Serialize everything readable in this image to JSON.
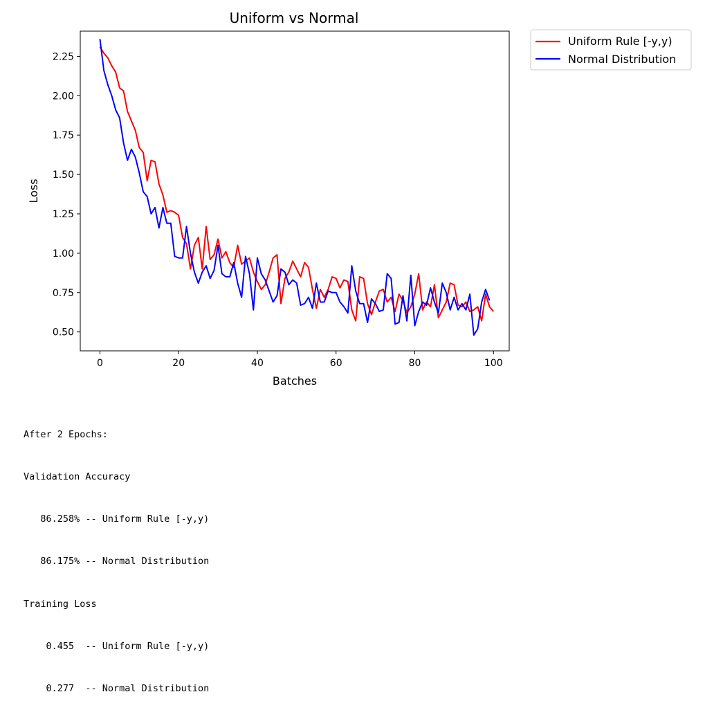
{
  "chart_data": {
    "type": "line",
    "title": "Uniform vs Normal",
    "xlabel": "Batches",
    "ylabel": "Loss",
    "xlim": [
      -5,
      104
    ],
    "ylim": [
      0.38,
      2.41
    ],
    "xticks": [
      0,
      20,
      40,
      60,
      80,
      100
    ],
    "yticks": [
      0.5,
      0.75,
      1.0,
      1.25,
      1.5,
      1.75,
      2.0,
      2.25
    ],
    "ytick_labels": [
      "0.50",
      "0.75",
      "1.00",
      "1.25",
      "1.50",
      "1.75",
      "2.00",
      "2.25"
    ],
    "grid": false,
    "legend_location": "outside-upper-right",
    "series": [
      {
        "name": "Uniform Rule [-y,y)",
        "color": "#ff0000",
        "values": [
          2.31,
          2.27,
          2.24,
          2.19,
          2.15,
          2.05,
          2.03,
          1.9,
          1.84,
          1.78,
          1.67,
          1.64,
          1.46,
          1.59,
          1.58,
          1.44,
          1.37,
          1.26,
          1.27,
          1.26,
          1.24,
          1.1,
          1.06,
          0.9,
          1.05,
          1.1,
          0.9,
          1.17,
          0.96,
          0.99,
          1.09,
          0.97,
          1.01,
          0.94,
          0.91,
          1.05,
          0.93,
          0.95,
          0.97,
          0.88,
          0.82,
          0.77,
          0.8,
          0.88,
          0.97,
          0.99,
          0.68,
          0.84,
          0.88,
          0.95,
          0.9,
          0.85,
          0.94,
          0.91,
          0.77,
          0.65,
          0.77,
          0.72,
          0.77,
          0.85,
          0.84,
          0.78,
          0.83,
          0.82,
          0.64,
          0.57,
          0.85,
          0.84,
          0.68,
          0.61,
          0.69,
          0.76,
          0.77,
          0.69,
          0.72,
          0.63,
          0.74,
          0.7,
          0.62,
          0.66,
          0.74,
          0.87,
          0.64,
          0.69,
          0.66,
          0.8,
          0.59,
          0.64,
          0.69,
          0.81,
          0.8,
          0.67,
          0.66,
          0.69,
          0.63,
          0.64,
          0.66,
          0.57,
          0.74,
          0.66,
          0.63
        ]
      },
      {
        "name": "Normal Distribution",
        "color": "#0000ff",
        "values": [
          2.36,
          2.16,
          2.07,
          2.0,
          1.91,
          1.86,
          1.7,
          1.59,
          1.66,
          1.61,
          1.51,
          1.39,
          1.36,
          1.25,
          1.29,
          1.16,
          1.29,
          1.19,
          1.19,
          0.98,
          0.97,
          0.97,
          1.17,
          1.0,
          0.88,
          0.81,
          0.88,
          0.92,
          0.84,
          0.89,
          1.05,
          0.87,
          0.85,
          0.85,
          0.94,
          0.81,
          0.72,
          0.98,
          0.87,
          0.64,
          0.97,
          0.87,
          0.83,
          0.76,
          0.69,
          0.73,
          0.9,
          0.88,
          0.8,
          0.83,
          0.81,
          0.67,
          0.68,
          0.72,
          0.65,
          0.81,
          0.69,
          0.69,
          0.76,
          0.75,
          0.75,
          0.69,
          0.66,
          0.62,
          0.92,
          0.76,
          0.68,
          0.68,
          0.56,
          0.71,
          0.68,
          0.63,
          0.64,
          0.87,
          0.84,
          0.55,
          0.56,
          0.73,
          0.57,
          0.86,
          0.54,
          0.63,
          0.69,
          0.67,
          0.78,
          0.69,
          0.62,
          0.81,
          0.75,
          0.64,
          0.72,
          0.64,
          0.68,
          0.64,
          0.74,
          0.48,
          0.52,
          0.69,
          0.77,
          0.7
        ]
      }
    ]
  },
  "output": {
    "lines": [
      "After 2 Epochs:",
      "Validation Accuracy",
      "   86.258% -- Uniform Rule [-y,y)",
      "   86.175% -- Normal Distribution",
      "Training Loss",
      "    0.455  -- Uniform Rule [-y,y)",
      "    0.277  -- Normal Distribution"
    ]
  }
}
